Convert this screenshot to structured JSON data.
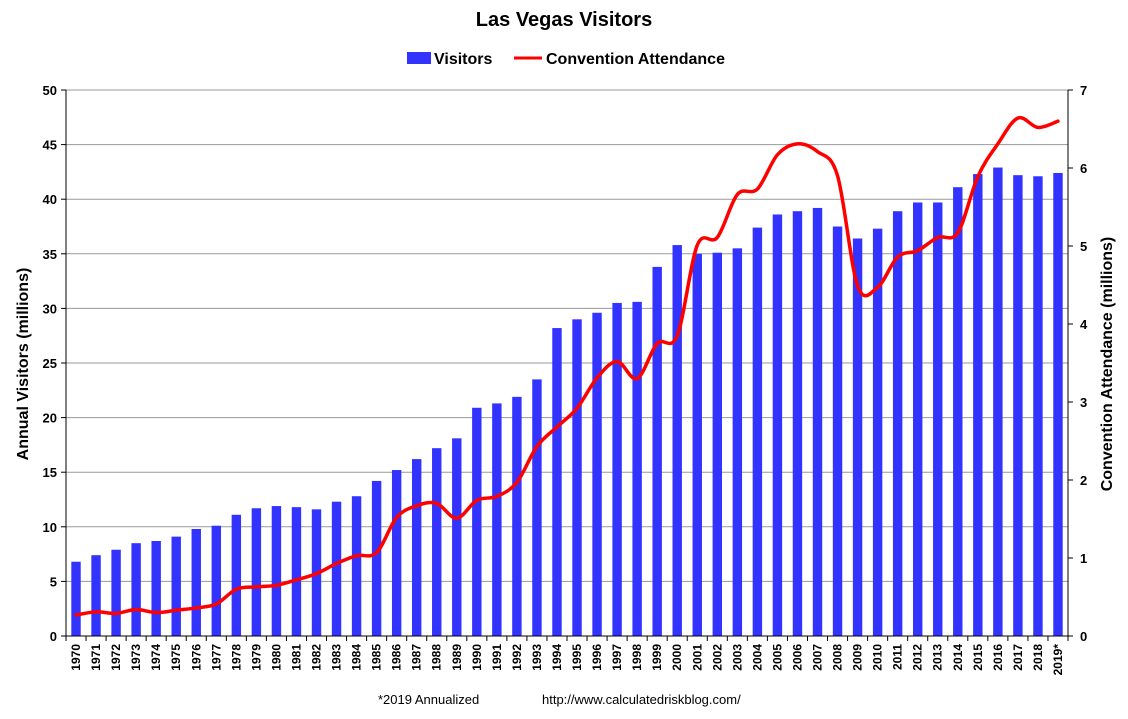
{
  "chart_data": {
    "type": "bar+line",
    "title": "Las Vegas Visitors",
    "categories": [
      "1970",
      "1971",
      "1972",
      "1973",
      "1974",
      "1975",
      "1976",
      "1977",
      "1978",
      "1979",
      "1980",
      "1981",
      "1982",
      "1983",
      "1984",
      "1985",
      "1986",
      "1987",
      "1988",
      "1989",
      "1990",
      "1991",
      "1992",
      "1993",
      "1994",
      "1995",
      "1996",
      "1997",
      "1998",
      "1999",
      "2000",
      "2001",
      "2002",
      "2003",
      "2004",
      "2005",
      "2006",
      "2007",
      "2008",
      "2009",
      "2010",
      "2011",
      "2012",
      "2013",
      "2014",
      "2015",
      "2016",
      "2017",
      "2018",
      "2019*"
    ],
    "series": [
      {
        "name": "Visitors",
        "type": "bar",
        "axis": "left",
        "color": "#3333ff",
        "values": [
          6.8,
          7.4,
          7.9,
          8.5,
          8.7,
          9.1,
          9.8,
          10.1,
          11.1,
          11.7,
          11.9,
          11.8,
          11.6,
          12.3,
          12.8,
          14.2,
          15.2,
          16.2,
          17.2,
          18.1,
          20.9,
          21.3,
          21.9,
          23.5,
          28.2,
          29.0,
          29.6,
          30.5,
          30.6,
          33.8,
          35.8,
          35.0,
          35.1,
          35.5,
          37.4,
          38.6,
          38.9,
          39.2,
          37.5,
          36.4,
          37.3,
          38.9,
          39.7,
          39.7,
          41.1,
          42.3,
          42.9,
          42.2,
          42.1,
          42.4
        ]
      },
      {
        "name": "Convention Attendance",
        "type": "line",
        "axis": "right",
        "color": "#ff0000",
        "values": [
          0.27,
          0.31,
          0.29,
          0.34,
          0.3,
          0.33,
          0.36,
          0.41,
          0.6,
          0.63,
          0.65,
          0.72,
          0.8,
          0.93,
          1.03,
          1.07,
          1.52,
          1.67,
          1.7,
          1.51,
          1.74,
          1.79,
          1.97,
          2.43,
          2.68,
          2.92,
          3.31,
          3.52,
          3.3,
          3.75,
          3.85,
          5.01,
          5.11,
          5.66,
          5.73,
          6.17,
          6.31,
          6.21,
          5.9,
          4.49,
          4.47,
          4.86,
          4.94,
          5.11,
          5.17,
          5.89,
          6.31,
          6.64,
          6.52,
          6.6
        ]
      }
    ],
    "ylabel": "Annual Visitors (millions)",
    "ylim": [
      0,
      50
    ],
    "yticks": [
      "0",
      "5",
      "10",
      "15",
      "20",
      "25",
      "30",
      "35",
      "40",
      "45",
      "50"
    ],
    "y2label": "Convention Attendance (millions)",
    "y2lim": [
      0,
      7
    ],
    "y2ticks": [
      "0",
      "1",
      "2",
      "3",
      "4",
      "5",
      "6",
      "7"
    ],
    "grid": true,
    "legend_position": "top-center"
  },
  "footer": {
    "note": "*2019 Annualized",
    "url": "http://www.calculatedriskblog.com/"
  }
}
